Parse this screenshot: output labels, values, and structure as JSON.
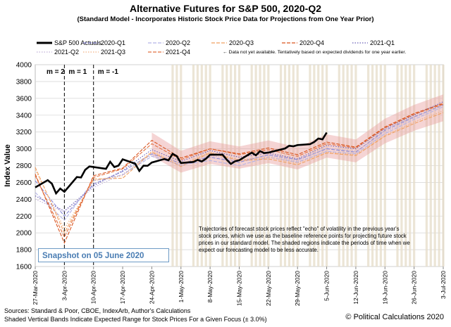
{
  "chart_data": {
    "type": "line",
    "title": "Alternative Futures for S&P 500, 2020-Q2",
    "subtitle": "(Standard Model - Incorporates Historic Stock Price Data for Projections from One Year Prior)",
    "ylabel": "Index Value",
    "ylim": [
      1600,
      4000
    ],
    "yticks": [
      1600,
      1800,
      2000,
      2200,
      2400,
      2600,
      2800,
      3000,
      3200,
      3400,
      3600,
      3800,
      4000
    ],
    "x_range": [
      "2020-03-27",
      "2020-07-03"
    ],
    "x_ticks": [
      "27-Mar-2020",
      "3-Apr-2020",
      "10-Apr-2020",
      "17-Apr-2020",
      "24-Apr-2020",
      "1-May-2020",
      "8-May-2020",
      "15-May-2020",
      "22-May-2020",
      "29-May-2020",
      "5-Jun-2020",
      "12-Jun-2020",
      "19-Jun-2020",
      "26-Jun-2020",
      "3-Jul-2020"
    ],
    "grid": true,
    "legend_placement": "top",
    "markers": [
      {
        "label": "m = 2",
        "x": "2020-03-27"
      },
      {
        "label": "m = 1",
        "x": "2020-04-03"
      },
      {
        "label": "m = -1",
        "x": "2020-04-10"
      }
    ],
    "shaded_range_start": "2020-04-29",
    "series": [
      {
        "name": "S&P 500 Actuals",
        "color": "#000000",
        "style": "solid-thick",
        "x": [
          "2020-03-27",
          "2020-03-30",
          "2020-03-31",
          "2020-04-01",
          "2020-04-02",
          "2020-04-03",
          "2020-04-06",
          "2020-04-07",
          "2020-04-08",
          "2020-04-09",
          "2020-04-13",
          "2020-04-14",
          "2020-04-15",
          "2020-04-16",
          "2020-04-17",
          "2020-04-20",
          "2020-04-21",
          "2020-04-22",
          "2020-04-23",
          "2020-04-24",
          "2020-04-27",
          "2020-04-28",
          "2020-04-29",
          "2020-04-30",
          "2020-05-01",
          "2020-05-04",
          "2020-05-05",
          "2020-05-06",
          "2020-05-07",
          "2020-05-08",
          "2020-05-11",
          "2020-05-12",
          "2020-05-13",
          "2020-05-14",
          "2020-05-15",
          "2020-05-18",
          "2020-05-19",
          "2020-05-20",
          "2020-05-21",
          "2020-05-22",
          "2020-05-26",
          "2020-05-27",
          "2020-05-28",
          "2020-05-29",
          "2020-06-01",
          "2020-06-02",
          "2020-06-03",
          "2020-06-04",
          "2020-06-05"
        ],
        "values": [
          2541,
          2627,
          2585,
          2470,
          2527,
          2489,
          2664,
          2659,
          2750,
          2790,
          2762,
          2846,
          2783,
          2800,
          2875,
          2823,
          2737,
          2799,
          2798,
          2837,
          2878,
          2863,
          2940,
          2912,
          2831,
          2843,
          2868,
          2849,
          2882,
          2930,
          2930,
          2870,
          2820,
          2852,
          2864,
          2954,
          2923,
          2972,
          2949,
          2955,
          3004,
          3036,
          3030,
          3044,
          3055,
          3081,
          3122,
          3112,
          3193
        ]
      },
      {
        "name": "2020-Q1",
        "color": "#8a8ad6",
        "style": "dash",
        "x": [
          "2020-03-27",
          "2020-04-03",
          "2020-04-10",
          "2020-04-17",
          "2020-04-24",
          "2020-05-01",
          "2020-05-08",
          "2020-05-15",
          "2020-05-22",
          "2020-05-29",
          "2020-06-05",
          "2020-06-12",
          "2020-06-19",
          "2020-06-26",
          "2020-07-03"
        ],
        "values": [
          2620,
          2200,
          2580,
          2730,
          2940,
          2830,
          2900,
          2840,
          2930,
          2870,
          3000,
          2960,
          3220,
          3380,
          3520
        ]
      },
      {
        "name": "2020-Q2",
        "color": "#b3b3e6",
        "style": "dash",
        "x": [
          "2020-03-27",
          "2020-04-03",
          "2020-04-10",
          "2020-04-17",
          "2020-04-24",
          "2020-05-01",
          "2020-05-08",
          "2020-05-15",
          "2020-05-22",
          "2020-05-29",
          "2020-06-05",
          "2020-06-12",
          "2020-06-19",
          "2020-06-26",
          "2020-07-03"
        ],
        "values": [
          2480,
          2150,
          2620,
          2690,
          2910,
          2810,
          2860,
          2800,
          2900,
          2840,
          2970,
          2940,
          3180,
          3350,
          3500
        ]
      },
      {
        "name": "2020-Q3",
        "color": "#f0a060",
        "style": "dash",
        "x": [
          "2020-03-27",
          "2020-04-03",
          "2020-04-10",
          "2020-04-17",
          "2020-04-24",
          "2020-05-01",
          "2020-05-08",
          "2020-05-15",
          "2020-05-22",
          "2020-05-29",
          "2020-06-05",
          "2020-06-12",
          "2020-06-19",
          "2020-06-26",
          "2020-07-03"
        ],
        "values": [
          2780,
          2000,
          2640,
          2650,
          2960,
          2790,
          2950,
          2860,
          2880,
          2810,
          2950,
          2920,
          3150,
          3300,
          3430
        ]
      },
      {
        "name": "2020-Q4",
        "color": "#d9531e",
        "style": "dash",
        "x": [
          "2020-03-27",
          "2020-04-03",
          "2020-04-10",
          "2020-04-17",
          "2020-04-24",
          "2020-05-01",
          "2020-05-08",
          "2020-05-15",
          "2020-05-22",
          "2020-05-29",
          "2020-06-05",
          "2020-06-12",
          "2020-06-19",
          "2020-06-26",
          "2020-07-03"
        ],
        "values": [
          2700,
          1880,
          2680,
          2770,
          3100,
          2890,
          3000,
          2940,
          3010,
          2930,
          3080,
          3020,
          3260,
          3420,
          3540
        ]
      },
      {
        "name": "2021-Q1",
        "color": "#6a5fb8",
        "style": "dot",
        "x": [
          "2020-03-27",
          "2020-04-03",
          "2020-04-10",
          "2020-04-17",
          "2020-04-24",
          "2020-05-01",
          "2020-05-08",
          "2020-05-15",
          "2020-05-22",
          "2020-05-29",
          "2020-06-05",
          "2020-06-12",
          "2020-06-19",
          "2020-06-26",
          "2020-07-03"
        ],
        "values": [
          2440,
          2260,
          2560,
          2740,
          2990,
          2850,
          2980,
          2900,
          2950,
          2880,
          3040,
          3000,
          3240,
          3400,
          3560
        ]
      },
      {
        "name": "2021-Q2",
        "color": "#c0b0d8",
        "style": "dot",
        "x": [
          "2020-03-27",
          "2020-04-03",
          "2020-04-10",
          "2020-04-17",
          "2020-04-24",
          "2020-05-01",
          "2020-05-08",
          "2020-05-15",
          "2020-05-22",
          "2020-05-29",
          "2020-06-05",
          "2020-06-12",
          "2020-06-19",
          "2020-06-26",
          "2020-07-03"
        ],
        "values": [
          2400,
          2250,
          2540,
          2700,
          2930,
          2800,
          2920,
          2860,
          2920,
          2850,
          3010,
          2970,
          3200,
          3370,
          3520
        ]
      },
      {
        "name": "2021-Q3",
        "color": "#f2b080",
        "style": "dot",
        "x": [
          "2020-03-27",
          "2020-04-03",
          "2020-04-10",
          "2020-04-17",
          "2020-04-24",
          "2020-05-01",
          "2020-05-08",
          "2020-05-15",
          "2020-05-22",
          "2020-05-29",
          "2020-06-05",
          "2020-06-12",
          "2020-06-19",
          "2020-06-26",
          "2020-07-03"
        ],
        "values": [
          2750,
          2050,
          2620,
          2680,
          2970,
          2810,
          2960,
          2870,
          2900,
          2830,
          2960,
          2930,
          3160,
          3320,
          3450
        ]
      },
      {
        "name": "2021-Q4",
        "color": "#e27040",
        "style": "dash",
        "x": [
          "2020-03-27",
          "2020-04-03",
          "2020-04-10",
          "2020-04-17",
          "2020-04-24",
          "2020-05-01",
          "2020-05-08",
          "2020-05-15",
          "2020-05-22",
          "2020-05-29",
          "2020-06-05",
          "2020-06-12",
          "2020-06-19",
          "2020-06-26",
          "2020-07-03"
        ],
        "values": [
          2680,
          1950,
          2660,
          2760,
          3060,
          2870,
          3000,
          2930,
          2990,
          2910,
          3060,
          3010,
          3250,
          3410,
          3530
        ]
      }
    ],
    "legend_note": "← Data not yet available.  Tentatively based on expected dividends for one year earlier.",
    "annotation": "Trajectories of forecast stock prices reflect \"echo\" of volatility in the previous year's stock prices, which we use as the baseline reference points for projecting future stock prices in our standard model.  The shaded regions indicate the periods of time when we expect our forecasting model to be less accurate.",
    "snapshot_label": "Snapshot on 05 June 2020",
    "source": "Sources: Standard & Poor, CBOE, IndexArb, Author's Calculations",
    "shading_note": "Shaded Vertical Bands Indicate Expected Range for Stock Prices For a Given Focus (± 3.0%)",
    "copyright": "© Political Calculations 2020",
    "colors": {
      "actuals": "#000000",
      "band": "#e8a0a0",
      "shade": "#e6dcc8",
      "snapshot": "#4a7db3"
    }
  }
}
